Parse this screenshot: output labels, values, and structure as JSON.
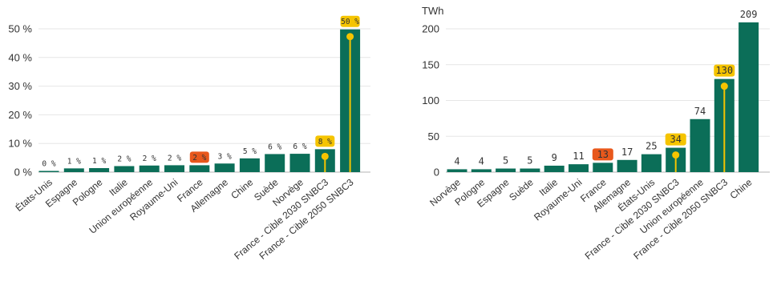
{
  "colors": {
    "bar": "#0b6e58",
    "highlight_badge": "#e8581c",
    "target_badge": "#f5c400",
    "target_line": "#f5c400",
    "badge_text": "#ffffff",
    "grid": "#e6e6e6"
  },
  "chart_data": [
    {
      "type": "bar",
      "title": "",
      "xlabel": "",
      "ylabel": "",
      "y_unit": "%",
      "ylim": [
        0,
        55
      ],
      "yticks": [
        0,
        10,
        20,
        30,
        40,
        50
      ],
      "ytick_labels": [
        "0 %",
        "10 %",
        "20 %",
        "30 %",
        "40 %",
        "50 %"
      ],
      "grid": true,
      "categories": [
        "États-Unis",
        "Espagne",
        "Pologne",
        "Italie",
        "Union européenne",
        "Royaume-Uni",
        "France",
        "Allemagne",
        "Chine",
        "Suède",
        "Norvège",
        "France - Cible 2030 SNBC3",
        "France - Cible 2050 SNBC3"
      ],
      "values": [
        0.4,
        1.3,
        1.4,
        2.1,
        2.3,
        2.4,
        2.4,
        3,
        4.8,
        6.3,
        6.4,
        8,
        49.8
      ],
      "value_labels": [
        "0 %",
        "1 %",
        "1 %",
        "2 %",
        "2 %",
        "2 %",
        "2 %",
        "3 %",
        "5 %",
        "6 %",
        "6 %",
        "8 %",
        "50 %"
      ],
      "highlight": [
        "France"
      ],
      "targets": [
        "France - Cible 2030 SNBC3",
        "France - Cible 2050 SNBC3"
      ]
    },
    {
      "type": "bar",
      "title": "",
      "xlabel": "",
      "ylabel": "TWh",
      "y_unit": "TWh",
      "ylim": [
        0,
        220
      ],
      "yticks": [
        0,
        50,
        100,
        150,
        200
      ],
      "ytick_labels": [
        "0",
        "50",
        "100",
        "150",
        "200"
      ],
      "grid": true,
      "categories": [
        "Norvège",
        "Pologne",
        "Espagne",
        "Suède",
        "Italie",
        "Royaume-Uni",
        "France",
        "Allemagne",
        "États-Unis",
        "France - Cible 2030 SNBC3",
        "Union européenne",
        "France - Cible 2050 SNBC3",
        "Chine"
      ],
      "values": [
        4,
        4,
        5,
        5,
        9,
        11,
        13,
        17,
        25,
        34,
        74,
        130,
        209
      ],
      "value_labels": [
        "4",
        "4",
        "5",
        "5",
        "9",
        "11",
        "13",
        "17",
        "25",
        "34",
        "74",
        "130",
        "209"
      ],
      "highlight": [
        "France"
      ],
      "targets": [
        "France - Cible 2030 SNBC3",
        "France - Cible 2050 SNBC3"
      ]
    }
  ]
}
